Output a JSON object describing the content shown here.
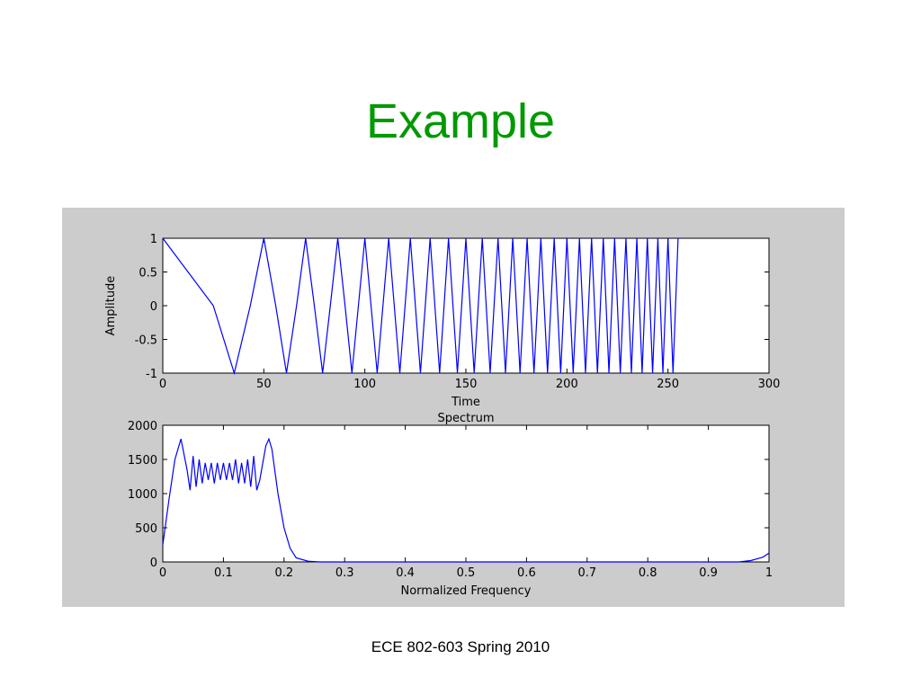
{
  "title": "Example",
  "footer": "ECE 802-603 Spring 2010",
  "chart_data": [
    {
      "type": "line",
      "xlabel": "Time",
      "ylabel": "Amplitude",
      "color": "#0000ff",
      "xlim": [
        0,
        300
      ],
      "ylim": [
        -1,
        1
      ],
      "xticks": [
        0,
        50,
        100,
        150,
        200,
        250,
        300
      ],
      "yticks": [
        -1,
        -0.5,
        0,
        0.5,
        1
      ],
      "x": [
        0,
        25.0,
        35.36,
        43.3,
        50.0,
        55.9,
        61.2,
        66.2,
        70.7,
        75.0,
        79.1,
        82.9,
        86.6,
        90.2,
        93.6,
        96.8,
        100.0,
        106.1,
        111.8,
        117.3,
        122.5,
        127.5,
        132.3,
        137.0,
        141.4,
        145.8,
        150.0,
        154.1,
        158.1,
        162.0,
        165.9,
        169.6,
        173.2,
        176.8,
        180.3,
        183.7,
        187.1,
        190.4,
        193.7,
        196.9,
        200.0,
        203.1,
        206.2,
        209.2,
        212.2,
        215.1,
        218.0,
        220.8,
        223.6,
        226.4,
        229.2,
        231.9,
        234.6,
        237.2,
        239.8,
        242.4,
        245.0,
        247.5,
        250.0,
        252.5,
        255.0
      ],
      "values": [
        1,
        0,
        -1,
        0,
        1,
        0,
        -1,
        0,
        1,
        0,
        -1,
        0,
        1,
        0,
        -1,
        0,
        1,
        -1,
        1,
        -1,
        1,
        -1,
        1,
        -1,
        1,
        -1,
        1,
        -1,
        1,
        -1,
        1,
        -1,
        1,
        -1,
        1,
        -1,
        1,
        -1,
        1,
        -1,
        1,
        -1,
        1,
        -1,
        1,
        -1,
        1,
        -1,
        1,
        -1,
        1,
        -1,
        1,
        -1,
        1,
        -1,
        1,
        -1,
        1,
        -1,
        1
      ]
    },
    {
      "type": "line",
      "title": "Spectrum",
      "xlabel": "Normalized Frequency",
      "color": "#0000ff",
      "xlim": [
        0,
        1
      ],
      "ylim": [
        0,
        2000
      ],
      "xticks": [
        0,
        0.1,
        0.2,
        0.3,
        0.4,
        0.5,
        0.6,
        0.7,
        0.8,
        0.9,
        1
      ],
      "yticks": [
        0,
        500,
        1000,
        1500,
        2000
      ],
      "x": [
        0,
        0.01,
        0.02,
        0.03,
        0.04,
        0.045,
        0.05,
        0.055,
        0.06,
        0.065,
        0.07,
        0.075,
        0.08,
        0.085,
        0.09,
        0.095,
        0.1,
        0.105,
        0.11,
        0.115,
        0.12,
        0.125,
        0.13,
        0.135,
        0.14,
        0.145,
        0.15,
        0.155,
        0.16,
        0.17,
        0.175,
        0.18,
        0.19,
        0.2,
        0.21,
        0.22,
        0.24,
        0.26,
        0.95,
        0.97,
        0.99,
        1
      ],
      "values": [
        250,
        900,
        1500,
        1800,
        1350,
        1050,
        1550,
        1100,
        1500,
        1150,
        1450,
        1200,
        1450,
        1150,
        1450,
        1200,
        1450,
        1200,
        1450,
        1200,
        1500,
        1150,
        1450,
        1150,
        1500,
        1100,
        1550,
        1050,
        1200,
        1700,
        1800,
        1650,
        1000,
        500,
        200,
        60,
        10,
        0,
        0,
        20,
        70,
        130
      ]
    }
  ]
}
